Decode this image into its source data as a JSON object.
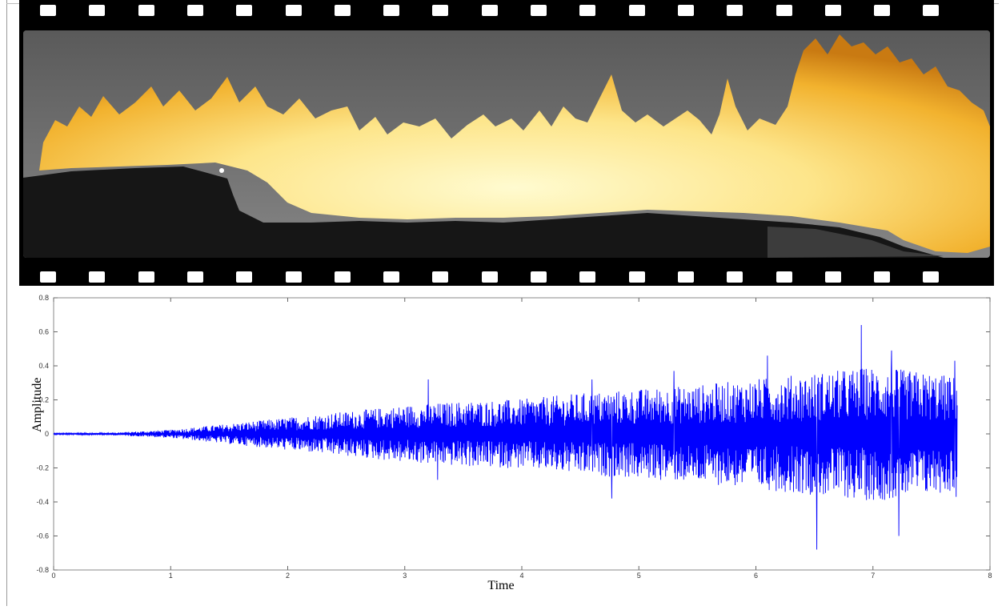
{
  "film": {
    "sprocket_count": 19,
    "colors": {
      "film": "#000000",
      "flame_core": "#fff7b0",
      "flame_outer": "#f2b22e",
      "smoke": "#6e6e6e",
      "ground": "#1a1a1a"
    }
  },
  "chart_data": {
    "type": "line",
    "xlabel": "Time",
    "ylabel": "Amplitude",
    "xlim": [
      0,
      8
    ],
    "ylim": [
      -0.8,
      0.8
    ],
    "xticks": [
      "0",
      "1",
      "2",
      "3",
      "4",
      "5",
      "6",
      "7",
      "8"
    ],
    "yticks": [
      "-0.8",
      "-0.6",
      "-0.4",
      "-0.2",
      "0",
      "0.2",
      "0.4",
      "0.6",
      "0.8"
    ],
    "grid": false,
    "series": [
      {
        "color": "#0000ff",
        "x_start": 0.0,
        "x_end": 7.72,
        "envelope": {
          "x": [
            0.0,
            0.5,
            1.0,
            1.5,
            2.0,
            2.5,
            3.0,
            3.5,
            4.0,
            4.5,
            5.0,
            5.5,
            6.0,
            6.5,
            7.0,
            7.5,
            7.72
          ],
          "amp": [
            0.003,
            0.006,
            0.02,
            0.05,
            0.08,
            0.11,
            0.14,
            0.16,
            0.17,
            0.2,
            0.22,
            0.24,
            0.27,
            0.3,
            0.33,
            0.3,
            0.28
          ]
        },
        "peaks": [
          {
            "x": 3.2,
            "y": 0.32
          },
          {
            "x": 3.28,
            "y": -0.27
          },
          {
            "x": 4.6,
            "y": 0.32
          },
          {
            "x": 4.77,
            "y": -0.38
          },
          {
            "x": 5.3,
            "y": 0.37
          },
          {
            "x": 6.1,
            "y": 0.46
          },
          {
            "x": 6.52,
            "y": -0.68
          },
          {
            "x": 6.9,
            "y": 0.64
          },
          {
            "x": 7.16,
            "y": 0.49
          },
          {
            "x": 7.22,
            "y": -0.6
          },
          {
            "x": 7.7,
            "y": 0.43
          },
          {
            "x": 7.71,
            "y": -0.37
          }
        ]
      }
    ]
  }
}
